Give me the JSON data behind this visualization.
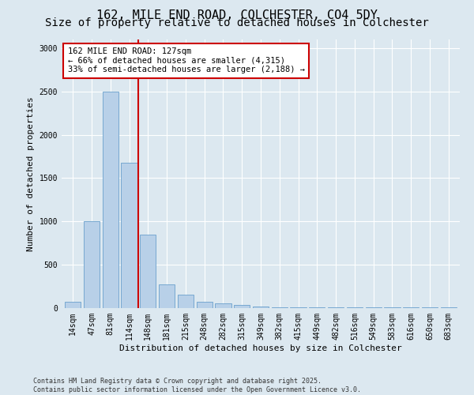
{
  "title_line1": "162, MILE END ROAD, COLCHESTER, CO4 5DY",
  "title_line2": "Size of property relative to detached houses in Colchester",
  "xlabel": "Distribution of detached houses by size in Colchester",
  "ylabel": "Number of detached properties",
  "bar_labels": [
    "14sqm",
    "47sqm",
    "81sqm",
    "114sqm",
    "148sqm",
    "181sqm",
    "215sqm",
    "248sqm",
    "282sqm",
    "315sqm",
    "349sqm",
    "382sqm",
    "415sqm",
    "449sqm",
    "482sqm",
    "516sqm",
    "549sqm",
    "583sqm",
    "616sqm",
    "650sqm",
    "683sqm"
  ],
  "bar_values": [
    75,
    1000,
    2500,
    1680,
    850,
    270,
    155,
    75,
    55,
    35,
    15,
    5,
    5,
    5,
    5,
    5,
    5,
    5,
    5,
    5,
    5
  ],
  "bar_color": "#b8d0e8",
  "bar_edge_color": "#6aa0cc",
  "background_color": "#dce8f0",
  "grid_color": "#ffffff",
  "vline_x": 3.5,
  "vline_color": "#cc0000",
  "annotation_text": "162 MILE END ROAD: 127sqm\n← 66% of detached houses are smaller (4,315)\n33% of semi-detached houses are larger (2,188) →",
  "annotation_box_color": "#ffffff",
  "annotation_box_edge": "#cc0000",
  "ylim": [
    0,
    3100
  ],
  "yticks": [
    0,
    500,
    1000,
    1500,
    2000,
    2500,
    3000
  ],
  "footer_line1": "Contains HM Land Registry data © Crown copyright and database right 2025.",
  "footer_line2": "Contains public sector information licensed under the Open Government Licence v3.0.",
  "title_fontsize": 11,
  "subtitle_fontsize": 10,
  "tick_fontsize": 7,
  "ylabel_fontsize": 8,
  "xlabel_fontsize": 8,
  "annotation_fontsize": 7.5,
  "footer_fontsize": 6
}
